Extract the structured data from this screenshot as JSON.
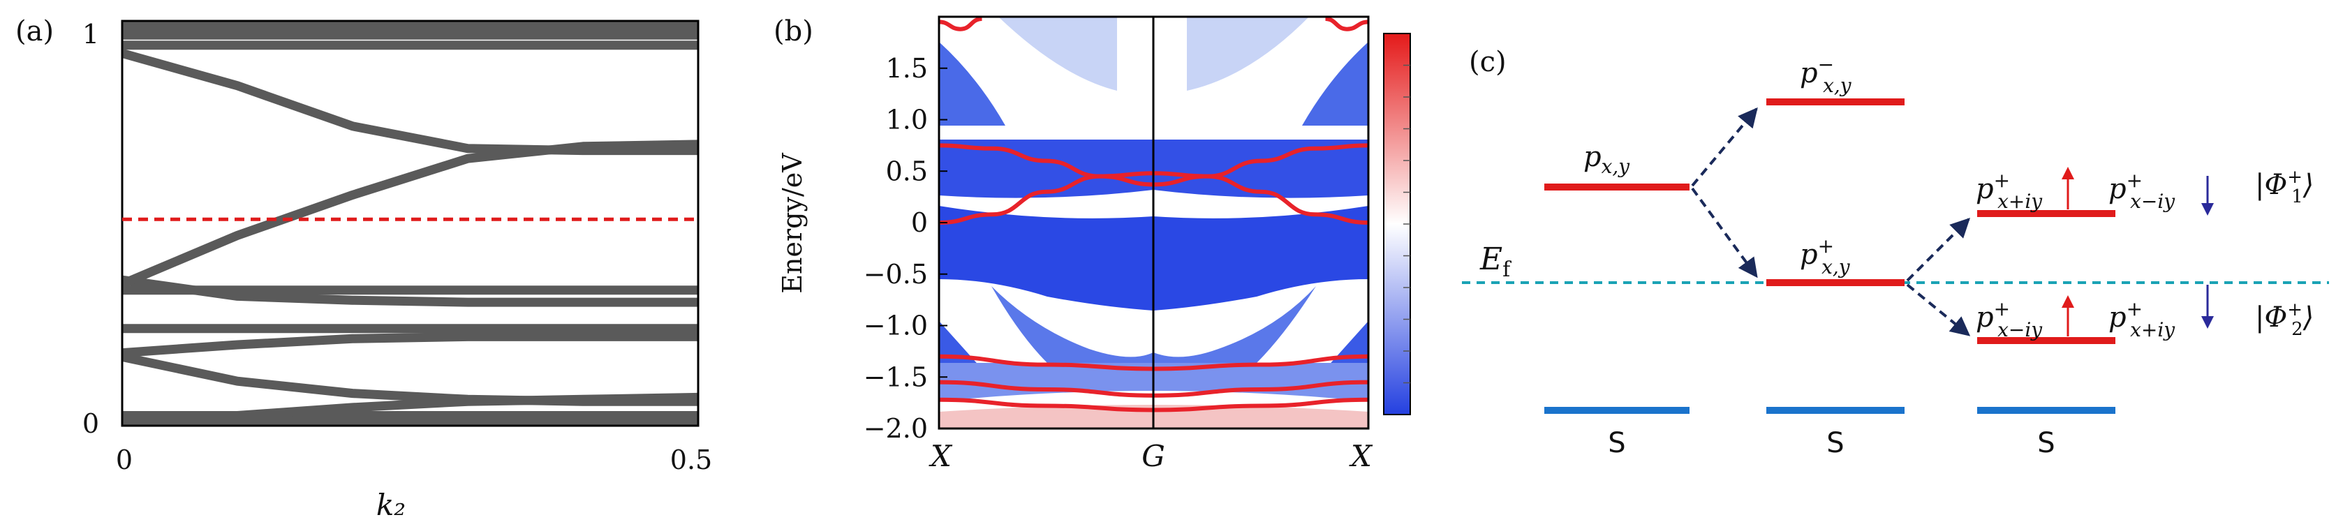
{
  "chart_data": [
    {
      "panel": "(a)",
      "type": "line",
      "xlabel": "k₂",
      "ylabel": "",
      "xlim": [
        0,
        0.5
      ],
      "ylim": [
        0,
        1
      ],
      "x_ticks": [
        "0",
        "0.5"
      ],
      "y_ticks": [
        "0",
        "1"
      ],
      "band_color": "#5a5a5a",
      "marker_color": "#e01b1b",
      "fermi_marker_y": 0.51,
      "series": [
        {
          "x": [
            0,
            0.5
          ],
          "y": [
            0.01,
            0.01
          ]
        },
        {
          "x": [
            0,
            0.5
          ],
          "y": [
            0.025,
            0.025
          ]
        },
        {
          "x": [
            0,
            0.1,
            0.2,
            0.3,
            0.4,
            0.5
          ],
          "y": [
            0.01,
            0.025,
            0.045,
            0.06,
            0.065,
            0.07
          ]
        },
        {
          "x": [
            0,
            0.1,
            0.2,
            0.3,
            0.4,
            0.5
          ],
          "y": [
            0.17,
            0.11,
            0.08,
            0.065,
            0.06,
            0.06
          ]
        },
        {
          "x": [
            0,
            0.1,
            0.2,
            0.3,
            0.4,
            0.5
          ],
          "y": [
            0.18,
            0.2,
            0.215,
            0.22,
            0.22,
            0.22
          ]
        },
        {
          "x": [
            0,
            0.5
          ],
          "y": [
            0.24,
            0.24
          ]
        },
        {
          "x": [
            0,
            0.1,
            0.2,
            0.3,
            0.4,
            0.5
          ],
          "y": [
            0.36,
            0.32,
            0.31,
            0.305,
            0.305,
            0.305
          ]
        },
        {
          "x": [
            0,
            0.5
          ],
          "y": [
            0.335,
            0.335
          ]
        },
        {
          "x": [
            0,
            0.1,
            0.2,
            0.3,
            0.4,
            0.5
          ],
          "y": [
            0.35,
            0.47,
            0.57,
            0.66,
            0.69,
            0.695
          ]
        },
        {
          "x": [
            0,
            0.1,
            0.2,
            0.3,
            0.4,
            0.5
          ],
          "y": [
            0.92,
            0.84,
            0.74,
            0.685,
            0.68,
            0.68
          ]
        },
        {
          "x": [
            0,
            0.5
          ],
          "y": [
            0.94,
            0.94
          ]
        },
        {
          "x": [
            0,
            0.5
          ],
          "y": [
            0.965,
            0.965
          ]
        },
        {
          "x": [
            0,
            0.5
          ],
          "y": [
            0.985,
            0.985
          ]
        },
        {
          "x": [
            0,
            0.5
          ],
          "y": [
            0.995,
            0.995
          ]
        }
      ]
    },
    {
      "panel": "(b)",
      "type": "heatmap",
      "ylabel": "Energy/eV",
      "xlabel": "",
      "x_tick_labels": [
        "X",
        "G",
        "X"
      ],
      "y_ticks": [
        1.5,
        1.0,
        0.5,
        0,
        -0.5,
        -1.0,
        -1.5,
        -2.0
      ],
      "y_tick_labels": [
        "1.5",
        "1.0",
        "0.5",
        "0",
        "−0.5",
        "−1.0",
        "−1.5",
        "−2.0"
      ],
      "xlim": [
        -1,
        1
      ],
      "ylim": [
        -2.0,
        2.0
      ],
      "colormap": [
        "#2440e0",
        "#ffffff",
        "#e41a1a"
      ],
      "edge_states": [
        {
          "x": [
            -1,
            -0.75,
            -0.5,
            -0.25,
            0,
            0.25,
            0.5,
            0.75,
            1
          ],
          "y": [
            0,
            0.08,
            0.3,
            0.45,
            0.48,
            0.45,
            0.3,
            0.08,
            0
          ]
        },
        {
          "x": [
            -1,
            -0.75,
            -0.5,
            -0.25,
            0,
            0.25,
            0.5,
            0.75,
            1
          ],
          "y": [
            0.75,
            0.72,
            0.6,
            0.45,
            0.37,
            0.45,
            0.6,
            0.72,
            0.75
          ]
        },
        {
          "x": [
            -1,
            -0.5,
            0,
            0.5,
            1
          ],
          "y": [
            -1.3,
            -1.38,
            -1.42,
            -1.38,
            -1.3
          ]
        },
        {
          "x": [
            -1,
            -0.5,
            0,
            0.5,
            1
          ],
          "y": [
            -1.55,
            -1.62,
            -1.68,
            -1.62,
            -1.55
          ]
        },
        {
          "x": [
            -1,
            -0.5,
            0,
            0.5,
            1
          ],
          "y": [
            -1.72,
            -1.78,
            -1.82,
            -1.78,
            -1.72
          ]
        },
        {
          "x": [
            -1,
            -0.9,
            -0.8
          ],
          "y": [
            1.95,
            1.88,
            1.98
          ]
        },
        {
          "x": [
            0.8,
            0.9,
            1
          ],
          "y": [
            1.98,
            1.88,
            1.95
          ]
        }
      ]
    },
    {
      "panel": "(c)",
      "type": "diagram",
      "fermi_label": "E_f",
      "fermi_color": "#1aa3b5",
      "level_color": "#e01b1b",
      "s_color": "#1a73cc",
      "levels": [
        {
          "label": "p_{x,y}",
          "energy": 0.6
        },
        {
          "label": "p^-_{x,y}",
          "energy": 1.15
        },
        {
          "label": "p^+_{x,y}",
          "energy": 0.0
        },
        {
          "label": "p^+_{x+iy}",
          "energy": 0.45
        },
        {
          "label": "p^+_{x-iy}",
          "energy": -0.6
        }
      ],
      "s_labels": [
        "S",
        "S",
        "S"
      ],
      "state_labels": [
        "|Φ₁⁺⟩",
        "|Φ₂⁺⟩"
      ]
    }
  ],
  "panels": {
    "a": {
      "label": "(a)",
      "xtick_0": "0",
      "xtick_1": "0.5",
      "ytick_0": "0",
      "ytick_1": "1"
    },
    "b": {
      "label": "(b)",
      "ylabel": "Energy/eV",
      "xt0": "X",
      "xt1": "G",
      "xt2": "X"
    },
    "c": {
      "label": "(c)",
      "s1": "S",
      "s2": "S",
      "s3": "S"
    }
  }
}
